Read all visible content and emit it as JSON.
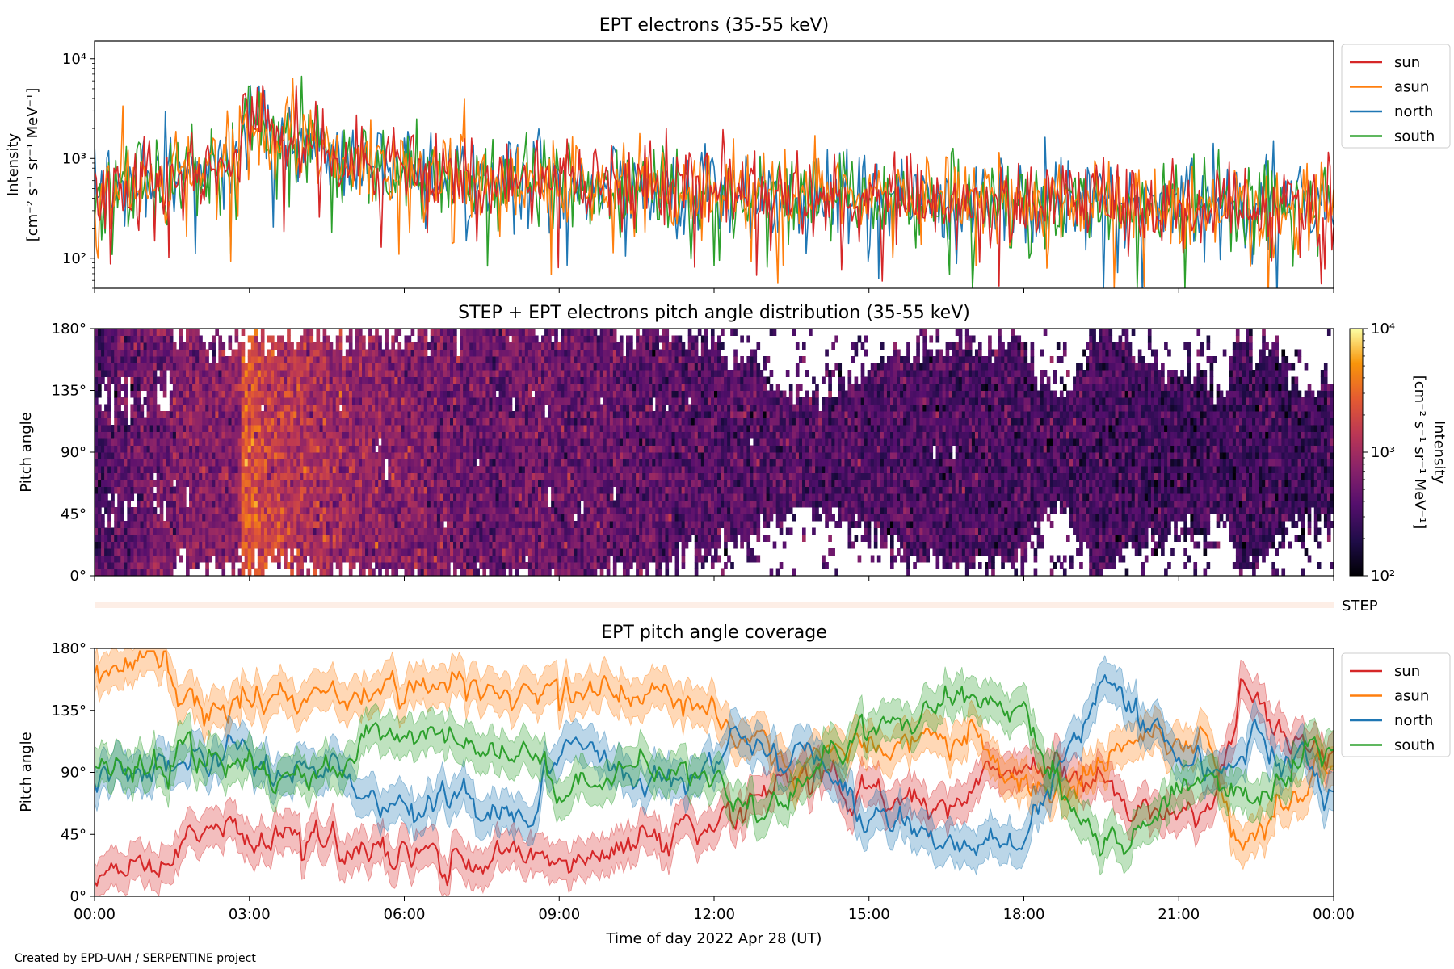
{
  "footer": {
    "credit": "Created by EPD-UAH / SERPENTINE project"
  },
  "colors": {
    "sun": "#d62728",
    "asun": "#ff7f0e",
    "north": "#1f77b4",
    "south": "#2ca02c"
  },
  "chart_data": [
    {
      "type": "line",
      "title": "EPT electrons (35-55 keV)",
      "ylabel": [
        "Intensity",
        "[cm⁻² s⁻¹ sr⁻¹ MeV⁻¹]"
      ],
      "yscale": "log",
      "ylim": [
        50,
        15000
      ],
      "yticks": [
        {
          "value": 100,
          "label": "10²"
        },
        {
          "value": 1000,
          "label": "10³"
        },
        {
          "value": 10000,
          "label": "10⁴"
        }
      ],
      "xlim_hours": [
        0,
        24
      ],
      "legend": {
        "placement": "outside-top-right",
        "entries": [
          "sun",
          "asun",
          "north",
          "south"
        ]
      },
      "series": [
        {
          "name": "sun",
          "color": "#d62728"
        },
        {
          "name": "asun",
          "color": "#ff7f0e"
        },
        {
          "name": "north",
          "color": "#1f77b4"
        },
        {
          "name": "south",
          "color": "#2ca02c"
        }
      ],
      "profile": {
        "x_hours": [
          0,
          1.0,
          2.0,
          2.8,
          2.9,
          3.3,
          4.5,
          6.0,
          7.9,
          8.0,
          12,
          16,
          20,
          24
        ],
        "median_intensity": [
          350,
          600,
          750,
          800,
          3000,
          1800,
          1100,
          750,
          500,
          620,
          420,
          380,
          340,
          300
        ]
      }
    },
    {
      "type": "heatmap",
      "title": "STEP + EPT electrons pitch angle distribution (35-55 keV)",
      "ylabel": "Pitch angle",
      "yticks": [
        "0°",
        "45°",
        "90°",
        "135°",
        "180°"
      ],
      "ylim": [
        0,
        180
      ],
      "xlim_hours": [
        0,
        24
      ],
      "colorbar": {
        "label": [
          "Intensity",
          "[cm⁻² s⁻¹ sr⁻¹ MeV⁻¹]"
        ],
        "scale": "log",
        "range": [
          100,
          10000
        ],
        "ticks": [
          {
            "value": 100,
            "label": "10²"
          },
          {
            "value": 1000,
            "label": "10³"
          },
          {
            "value": 10000,
            "label": "10⁴"
          }
        ],
        "colormap": "inferno"
      }
    },
    {
      "type": "band",
      "label": "STEP"
    },
    {
      "type": "line",
      "title": "EPT pitch angle coverage",
      "ylabel": "Pitch angle",
      "yticks": [
        "0°",
        "45°",
        "90°",
        "135°",
        "180°"
      ],
      "ylim": [
        0,
        180
      ],
      "xlim_hours": [
        0,
        24
      ],
      "xlabel": "Time of day 2022 Apr 28 (UT)",
      "xticks": [
        "00:00",
        "03:00",
        "06:00",
        "09:00",
        "12:00",
        "15:00",
        "18:00",
        "21:00",
        "00:00"
      ],
      "legend": {
        "placement": "outside-top-right",
        "entries": [
          "sun",
          "asun",
          "north",
          "south"
        ]
      },
      "series": [
        {
          "name": "sun",
          "color": "#d62728",
          "x_hours": [
            0,
            1.4,
            1.6,
            3,
            5.5,
            7,
            9,
            9.2,
            12,
            13.5,
            15,
            16.5,
            18,
            19.2,
            20,
            21.5,
            22.2,
            23,
            24
          ],
          "pitch_angle": [
            15,
            20,
            45,
            40,
            35,
            30,
            30,
            20,
            45,
            90,
            75,
            60,
            100,
            90,
            70,
            60,
            150,
            120,
            85
          ]
        },
        {
          "name": "asun",
          "color": "#ff7f0e",
          "x_hours": [
            0,
            1.4,
            1.6,
            3,
            5.5,
            7,
            9,
            9.2,
            12,
            13.5,
            15,
            16.5,
            18,
            19.2,
            20,
            21.5,
            22.2,
            23,
            24
          ],
          "pitch_angle": [
            165,
            168,
            135,
            140,
            145,
            150,
            150,
            160,
            135,
            90,
            105,
            120,
            80,
            90,
            110,
            120,
            30,
            60,
            95
          ]
        },
        {
          "name": "north",
          "color": "#1f77b4",
          "x_hours": [
            0,
            1.4,
            1.6,
            3,
            4.5,
            5.5,
            7,
            8.5,
            9,
            10.5,
            12,
            12.5,
            13.5,
            15,
            16.5,
            18,
            19.2,
            19.5,
            21.5,
            22.5,
            24
          ],
          "pitch_angle": [
            85,
            90,
            95,
            90,
            100,
            60,
            70,
            60,
            110,
            85,
            90,
            125,
            100,
            60,
            40,
            40,
            130,
            150,
            90,
            110,
            70
          ]
        },
        {
          "name": "south",
          "color": "#2ca02c",
          "x_hours": [
            0,
            1.4,
            1.6,
            3,
            4.5,
            5.5,
            7,
            8.5,
            9,
            10.5,
            12,
            12.5,
            13.5,
            15,
            16.5,
            18,
            19.2,
            19.5,
            21.5,
            22.5,
            24
          ],
          "pitch_angle": [
            95,
            90,
            105,
            90,
            80,
            120,
            110,
            100,
            70,
            95,
            90,
            55,
            80,
            120,
            140,
            140,
            50,
            30,
            90,
            70,
            110
          ]
        }
      ]
    }
  ]
}
